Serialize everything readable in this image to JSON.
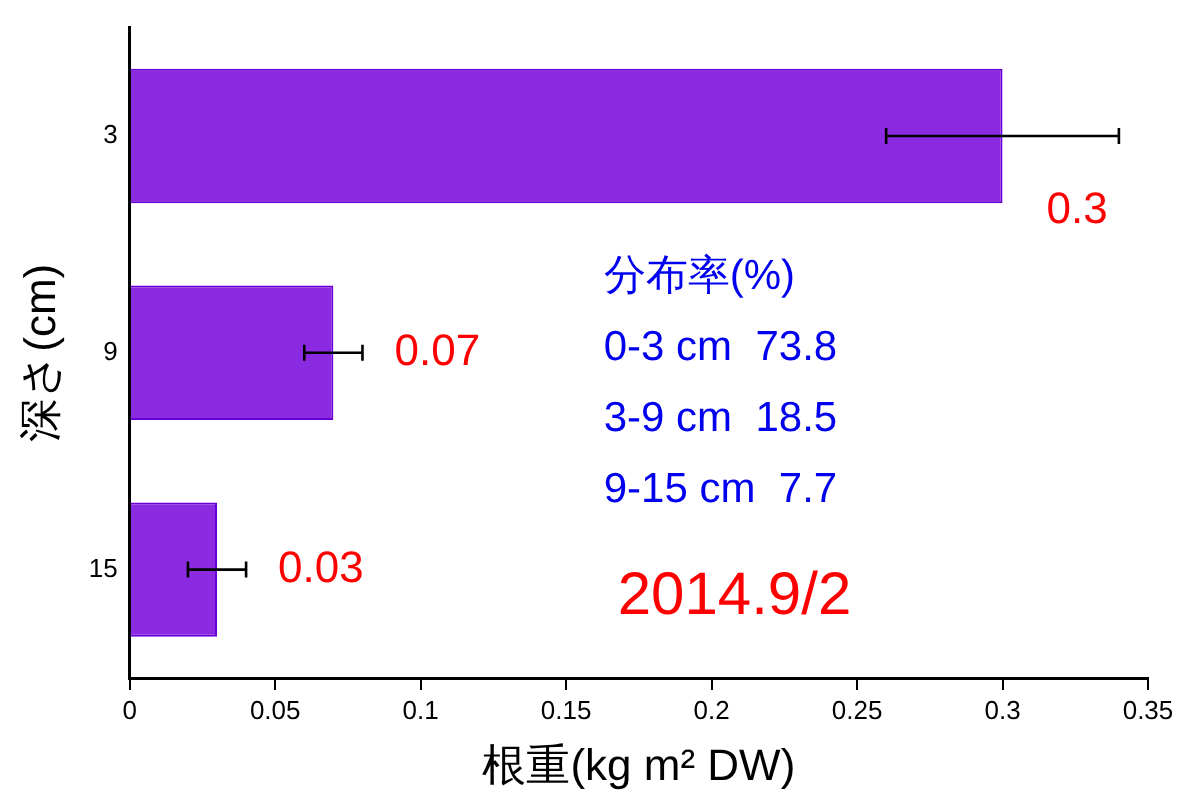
{
  "chart_data": {
    "type": "bar",
    "orientation": "horizontal",
    "xlabel": "根重(kg m² DW)",
    "ylabel": "深さ(cm)",
    "categories": [
      "3",
      "9",
      "15"
    ],
    "values": [
      0.3,
      0.07,
      0.03
    ],
    "errors": [
      0.04,
      0.01,
      0.01
    ],
    "color": "#8a2be2",
    "xlim": [
      0,
      0.35
    ],
    "xticks": [
      0,
      0.05,
      0.1,
      0.15,
      0.2,
      0.25,
      0.3,
      0.35
    ],
    "grid": false,
    "legend": false,
    "data_labels": true,
    "annotations": [
      "分布率(%)",
      "0-3 cm  73.8",
      "3-9 cm  18.5",
      "9-15 cm  7.7",
      "2014.9/2"
    ]
  }
}
